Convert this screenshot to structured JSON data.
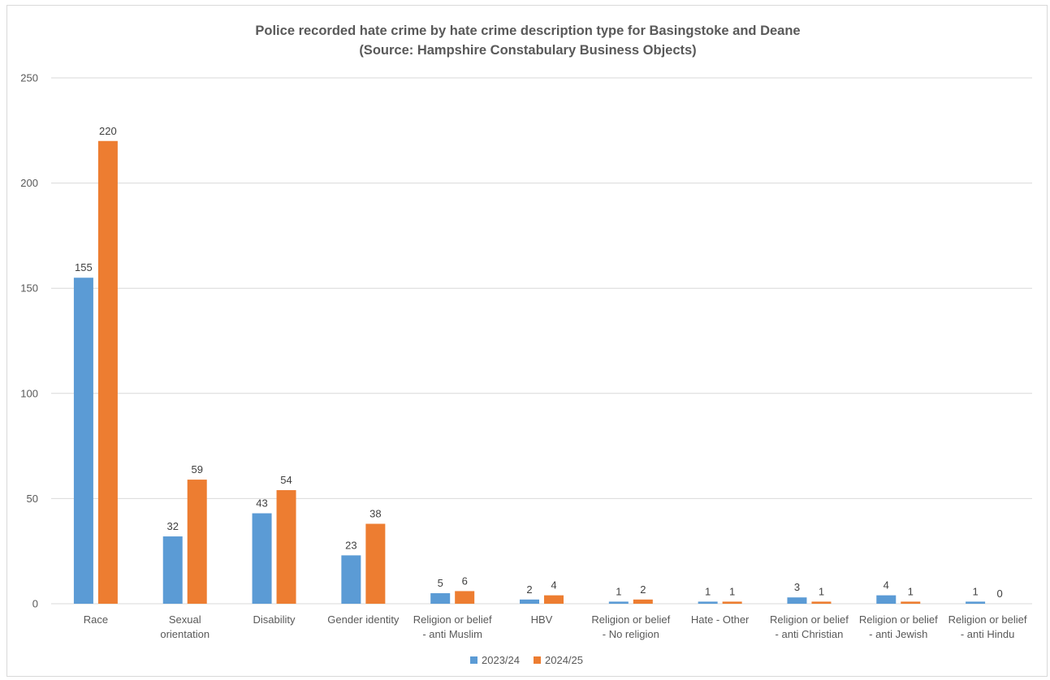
{
  "chart_data": {
    "type": "bar",
    "title": "Police recorded hate crime by hate crime description type for Basingstoke and Deane",
    "subtitle": "(Source: Hampshire Constabulary Business Objects)",
    "categories": [
      [
        "Race"
      ],
      [
        "Sexual",
        "orientation"
      ],
      [
        "Disability"
      ],
      [
        "Gender identity"
      ],
      [
        "Religion or belief",
        "- anti Muslim"
      ],
      [
        "HBV"
      ],
      [
        "Religion or belief",
        "- No religion"
      ],
      [
        "Hate - Other"
      ],
      [
        "Religion or belief",
        "- anti Christian"
      ],
      [
        "Religion or belief",
        "- anti Jewish"
      ],
      [
        "Religion or belief",
        "- anti  Hindu"
      ]
    ],
    "series": [
      {
        "name": "2023/24",
        "color": "#5b9bd5",
        "values": [
          155,
          32,
          43,
          23,
          5,
          2,
          1,
          1,
          3,
          4,
          1
        ]
      },
      {
        "name": "2024/25",
        "color": "#ed7d31",
        "values": [
          220,
          59,
          54,
          38,
          6,
          4,
          2,
          1,
          1,
          1,
          0
        ]
      }
    ],
    "ylim": [
      0,
      250
    ],
    "yticks": [
      0,
      50,
      100,
      150,
      200,
      250
    ],
    "grid": true,
    "legend_position": "bottom",
    "data_labels": true,
    "gridline_color": "#d9d9d9"
  }
}
